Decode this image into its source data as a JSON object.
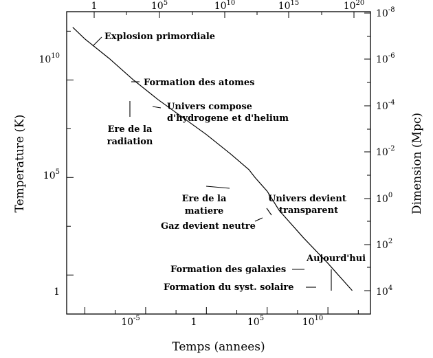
{
  "chart_data": {
    "type": "line",
    "xlabel": "Temps (annees)",
    "ylabel": "Temperature (K)",
    "y2label": "Dimension (Mpc)",
    "x_scale": "log",
    "y_scale": "log",
    "xlim": [
      -11.5,
      13.5
    ],
    "ylim": [
      -2,
      13.5
    ],
    "x_bottom_ticks": [
      {
        "value": -5,
        "base": "10",
        "exp": "-5"
      },
      {
        "value": 0,
        "base": "1",
        "exp": ""
      },
      {
        "value": 5,
        "base": "10",
        "exp": "5"
      },
      {
        "value": 10,
        "base": "10",
        "exp": "10"
      }
    ],
    "x_top_ticks": [
      {
        "base": "1",
        "exp": ""
      },
      {
        "base": "10",
        "exp": "5"
      },
      {
        "base": "10",
        "exp": "10"
      },
      {
        "base": "10",
        "exp": "15"
      },
      {
        "base": "10",
        "exp": "20"
      }
    ],
    "y_left_ticks": [
      {
        "value": 0,
        "base": "1",
        "exp": ""
      },
      {
        "value": 5,
        "base": "10",
        "exp": "5"
      },
      {
        "value": 10,
        "base": "10",
        "exp": "10"
      }
    ],
    "y_right_ticks": [
      {
        "base": "10",
        "exp": "-8"
      },
      {
        "base": "10",
        "exp": "-6"
      },
      {
        "base": "10",
        "exp": "-4"
      },
      {
        "base": "10",
        "exp": "-2"
      },
      {
        "base": "10",
        "exp": "0"
      },
      {
        "base": "10",
        "exp": "2"
      },
      {
        "base": "10",
        "exp": "4"
      }
    ],
    "series": [
      {
        "x": [
          -11.0,
          -10.0,
          -8.0,
          -6.0,
          -5.0,
          -4.0,
          -2.0,
          0.0,
          2.0,
          3.5,
          4.0,
          5.0,
          6.0,
          8.0,
          10.0,
          12.0
        ],
        "y": [
          12.7,
          12.1,
          11.1,
          10.0,
          9.5,
          9.0,
          8.1,
          7.2,
          6.2,
          5.4,
          5.0,
          4.3,
          3.3,
          1.9,
          0.6,
          -0.8
        ]
      }
    ],
    "annotations": [
      {
        "lines": [
          "Explosion primordiale"
        ]
      },
      {
        "lines": [
          "Formation des atomes"
        ]
      },
      {
        "lines": [
          "Univers compose",
          "d'hydrogene et d'helium"
        ]
      },
      {
        "lines": [
          "Ere de la",
          "radiation"
        ]
      },
      {
        "lines": [
          "Ere de la",
          "matiere"
        ]
      },
      {
        "lines": [
          "Univers devient",
          "transparent"
        ]
      },
      {
        "lines": [
          "Gaz devient neutre"
        ]
      },
      {
        "lines": [
          "Aujourd'hui"
        ]
      },
      {
        "lines": [
          "Formation des galaxies"
        ]
      },
      {
        "lines": [
          "Formation du syst. solaire"
        ]
      }
    ]
  }
}
